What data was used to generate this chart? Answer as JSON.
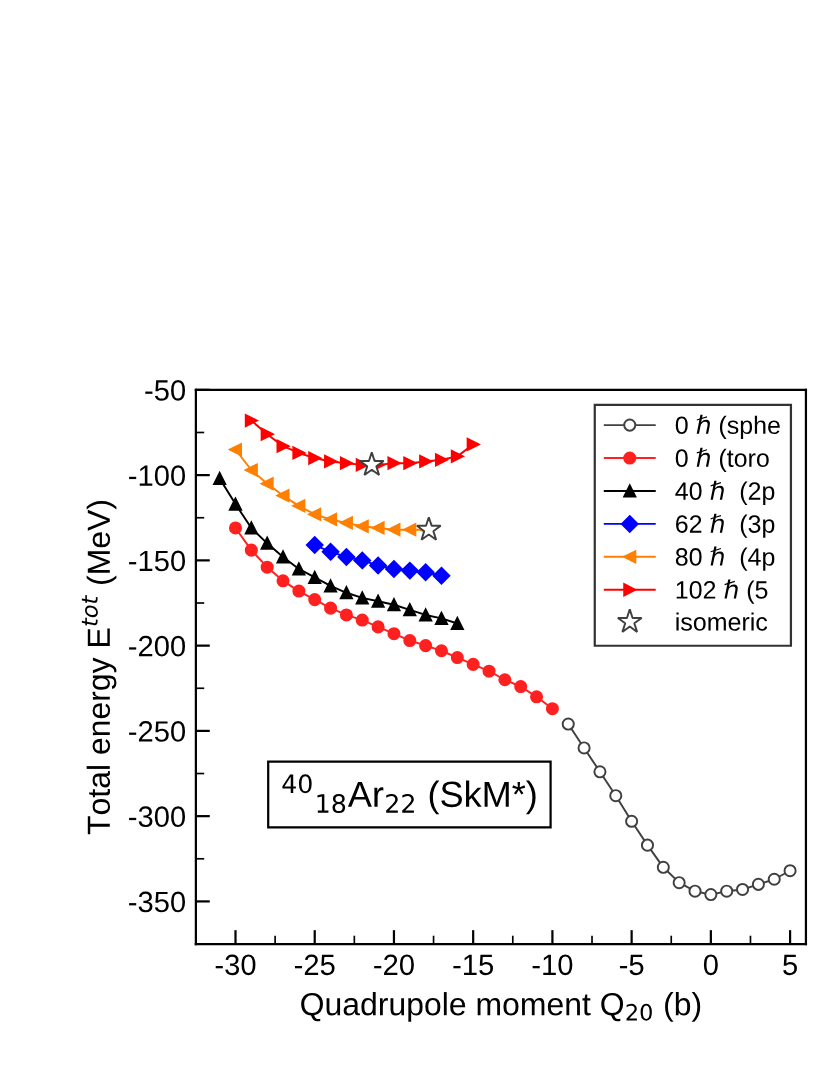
{
  "chart_data": {
    "type": "line",
    "xlabel": "Quadrupole moment Q$_{20}$ (b)",
    "ylabel": "Total energy E$^{tot}$ (MeV)",
    "xlim": [
      -32.5,
      6
    ],
    "ylim": [
      -375,
      -50
    ],
    "xticks": [
      -30,
      -25,
      -20,
      -15,
      -10,
      -5,
      0,
      5
    ],
    "yticks": [
      -350,
      -300,
      -250,
      -200,
      -150,
      -100,
      -50
    ],
    "grid": false,
    "legend": "top right",
    "line_style": "solid",
    "annotations": [
      "$^{40}$$_{18}$Ar$_{22}$ (SkM*)"
    ],
    "series": [
      {
        "name": "0 ℏ (sphe",
        "color": "#ffffff",
        "marker": "circle",
        "x": [
          -9,
          -8,
          -7,
          -6,
          -5,
          -4,
          -3,
          -2,
          -1,
          0,
          1,
          2,
          3,
          4,
          5
        ],
        "values": [
          -246,
          -260,
          -274,
          -288,
          -303,
          -317,
          -330,
          -339,
          -344,
          -346,
          -344,
          -343,
          -340,
          -337,
          -332
        ]
      },
      {
        "name": "0 ℏ (toro",
        "color": "#ff2020",
        "marker": "circle",
        "x": [
          -30,
          -29,
          -28,
          -27,
          -26,
          -25,
          -24,
          -23,
          -22,
          -21,
          -20,
          -19,
          -18,
          -17,
          -16,
          -15,
          -14,
          -13,
          -12,
          -11,
          -10
        ],
        "values": [
          -131,
          -144,
          -154,
          -162,
          -168,
          -173,
          -178,
          -182,
          -185,
          -189,
          -193,
          -197,
          -200,
          -203,
          -207,
          -211,
          -215,
          -220,
          -224,
          -230,
          -237
        ]
      },
      {
        "name": "40 ℏ  (2p",
        "color": "#000000",
        "marker": "triangle",
        "x": [
          -31,
          -30,
          -29,
          -28,
          -27,
          -26,
          -25,
          -24,
          -23,
          -22,
          -21,
          -20,
          -19,
          -18,
          -17,
          -16
        ],
        "values": [
          -102,
          -117,
          -131,
          -140,
          -148,
          -155,
          -160,
          -165,
          -169,
          -172,
          -174,
          -176,
          -179,
          -182,
          -184,
          -187
        ]
      },
      {
        "name": "62 ℏ  (3p",
        "color": "#0000ff",
        "marker": "diamond",
        "x": [
          -25,
          -24,
          -23,
          -22,
          -21,
          -20,
          -19,
          -18,
          -17
        ],
        "values": [
          -141,
          -145,
          -148,
          -150,
          -153,
          -155,
          -156,
          -157,
          -159
        ]
      },
      {
        "name": "80 ℏ  (4p",
        "color": "#ff8000",
        "marker": "triangle_left",
        "x": [
          -30,
          -29,
          -28,
          -27,
          -26,
          -25,
          -24,
          -23,
          -22,
          -21,
          -20,
          -19,
          -18
        ],
        "values": [
          -85,
          -97,
          -105,
          -112,
          -118,
          -123,
          -126,
          -128,
          -130,
          -131,
          -132,
          -132,
          -132
        ]
      },
      {
        "name": "102 ℏ (5",
        "color": "#ff0000",
        "marker": "triangle_right",
        "x": [
          -29,
          -28,
          -27,
          -26,
          -25,
          -24,
          -23,
          -22,
          -21,
          -20,
          -19,
          -18,
          -17,
          -16,
          -15
        ],
        "values": [
          -68,
          -76,
          -83,
          -87,
          -90,
          -92,
          -93,
          -94,
          -94,
          -93,
          -93,
          -92,
          -91,
          -89,
          -82
        ]
      },
      {
        "name": "isomeric",
        "type": "scatter",
        "color": "#ffffff",
        "marker": "star",
        "x": [
          -21.4,
          -17.8
        ],
        "values": [
          -94,
          -132
        ]
      }
    ]
  }
}
